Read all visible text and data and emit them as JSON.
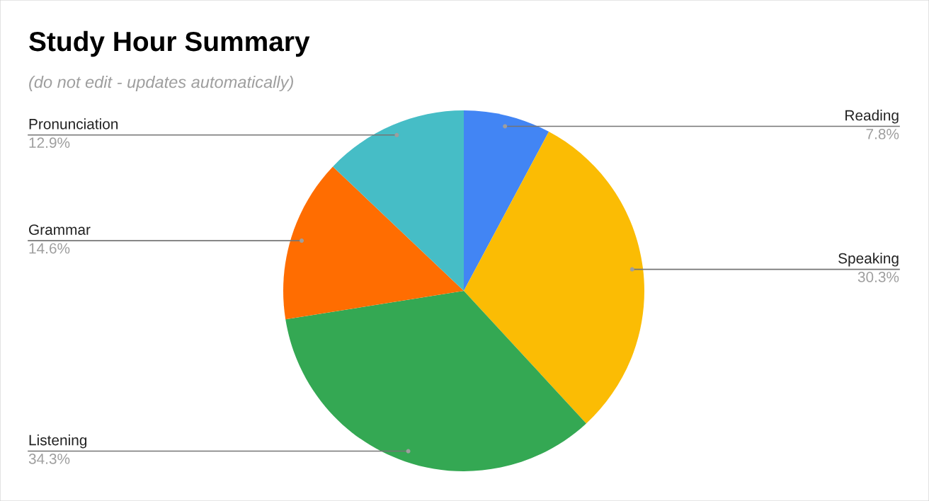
{
  "chart_data": {
    "type": "pie",
    "title": "Study Hour Summary",
    "subtitle": "(do not edit - updates automatically)",
    "categories": [
      "Reading",
      "Speaking",
      "Listening",
      "Grammar",
      "Pronunciation"
    ],
    "values": [
      7.8,
      30.3,
      34.3,
      14.6,
      12.9
    ],
    "colors": [
      "#4285f4",
      "#fbbc04",
      "#34a853",
      "#ff6d01",
      "#46bdc6"
    ],
    "value_labels": [
      "7.8%",
      "30.3%",
      "34.3%",
      "14.6%",
      "12.9%"
    ]
  }
}
